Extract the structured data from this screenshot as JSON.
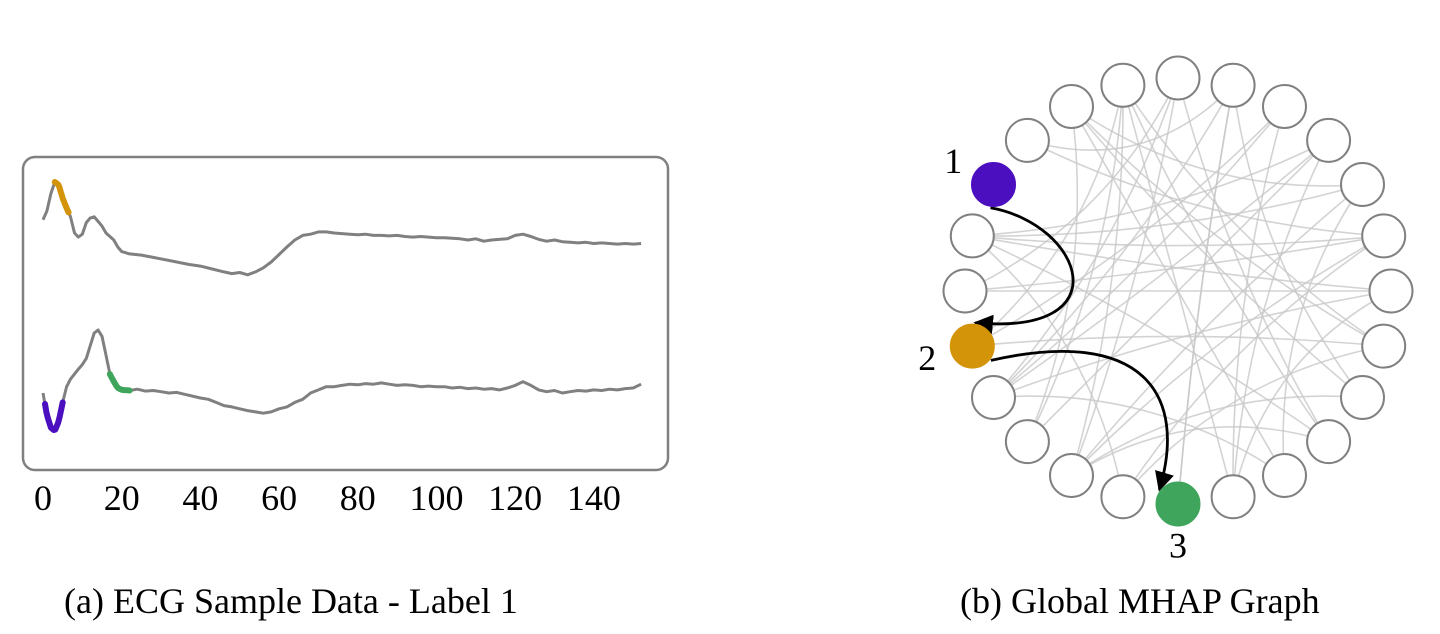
{
  "panels": {
    "a": {
      "caption": "(a) ECG Sample Data - Label 1"
    },
    "b": {
      "caption": "(b) Global MHAP Graph"
    }
  },
  "chart_data": [
    {
      "type": "line",
      "xlim": [
        0,
        153
      ],
      "x_ticks": [
        "0",
        "20",
        "40",
        "60",
        "80",
        "100",
        "120",
        "140"
      ],
      "x_tick_values": [
        0,
        20,
        40,
        60,
        80,
        100,
        120,
        140
      ],
      "grid": false,
      "line_color": "#808080",
      "series": [
        {
          "points": [
            [
              0,
              0.35
            ],
            [
              1,
              0.5
            ],
            [
              2,
              0.8
            ],
            [
              3,
              1.0
            ],
            [
              4,
              0.95
            ],
            [
              5,
              0.72
            ],
            [
              6,
              0.55
            ],
            [
              7,
              0.4
            ],
            [
              8,
              0.12
            ],
            [
              9,
              0.05
            ],
            [
              10,
              0.1
            ],
            [
              11,
              0.3
            ],
            [
              12,
              0.38
            ],
            [
              13,
              0.4
            ],
            [
              14,
              0.32
            ],
            [
              15,
              0.24
            ],
            [
              16,
              0.12
            ],
            [
              17,
              0.06
            ],
            [
              18,
              0.0
            ],
            [
              19,
              -0.12
            ],
            [
              20,
              -0.2
            ],
            [
              22,
              -0.24
            ],
            [
              25,
              -0.26
            ],
            [
              28,
              -0.3
            ],
            [
              31,
              -0.34
            ],
            [
              34,
              -0.38
            ],
            [
              37,
              -0.42
            ],
            [
              40,
              -0.45
            ],
            [
              43,
              -0.5
            ],
            [
              46,
              -0.55
            ],
            [
              48,
              -0.58
            ],
            [
              50,
              -0.56
            ],
            [
              52,
              -0.6
            ],
            [
              54,
              -0.55
            ],
            [
              56,
              -0.48
            ],
            [
              58,
              -0.38
            ],
            [
              60,
              -0.25
            ],
            [
              62,
              -0.12
            ],
            [
              64,
              0.0
            ],
            [
              66,
              0.08
            ],
            [
              68,
              0.1
            ],
            [
              70,
              0.14
            ],
            [
              72,
              0.14
            ],
            [
              74,
              0.12
            ],
            [
              76,
              0.11
            ],
            [
              78,
              0.1
            ],
            [
              80,
              0.09
            ],
            [
              82,
              0.1
            ],
            [
              84,
              0.08
            ],
            [
              86,
              0.08
            ],
            [
              88,
              0.07
            ],
            [
              90,
              0.08
            ],
            [
              92,
              0.06
            ],
            [
              94,
              0.05
            ],
            [
              96,
              0.06
            ],
            [
              98,
              0.05
            ],
            [
              100,
              0.04
            ],
            [
              102,
              0.04
            ],
            [
              104,
              0.03
            ],
            [
              106,
              0.02
            ],
            [
              108,
              0.0
            ],
            [
              110,
              0.02
            ],
            [
              112,
              -0.02
            ],
            [
              114,
              0.0
            ],
            [
              116,
              0.01
            ],
            [
              118,
              0.02
            ],
            [
              120,
              0.08
            ],
            [
              122,
              0.1
            ],
            [
              124,
              0.06
            ],
            [
              126,
              0.01
            ],
            [
              128,
              -0.02
            ],
            [
              130,
              0.0
            ],
            [
              132,
              -0.03
            ],
            [
              134,
              -0.04
            ],
            [
              136,
              -0.05
            ],
            [
              138,
              -0.04
            ],
            [
              140,
              -0.06
            ],
            [
              142,
              -0.05
            ],
            [
              144,
              -0.06
            ],
            [
              146,
              -0.07
            ],
            [
              148,
              -0.06
            ],
            [
              150,
              -0.07
            ],
            [
              152,
              -0.06
            ]
          ],
          "highlights": [
            {
              "from": 3,
              "to": 6.5,
              "color": "#d4940a"
            }
          ]
        },
        {
          "points": [
            [
              0,
              0.0
            ],
            [
              1,
              -0.35
            ],
            [
              2,
              -0.55
            ],
            [
              3,
              -0.6
            ],
            [
              4,
              -0.45
            ],
            [
              5,
              -0.15
            ],
            [
              6,
              0.1
            ],
            [
              7,
              0.22
            ],
            [
              8,
              0.3
            ],
            [
              9,
              0.38
            ],
            [
              10,
              0.45
            ],
            [
              11,
              0.55
            ],
            [
              12,
              0.75
            ],
            [
              13,
              0.95
            ],
            [
              14,
              1.0
            ],
            [
              15,
              0.9
            ],
            [
              16,
              0.6
            ],
            [
              17,
              0.3
            ],
            [
              18,
              0.18
            ],
            [
              19,
              0.08
            ],
            [
              20,
              0.05
            ],
            [
              22,
              0.04
            ],
            [
              24,
              0.06
            ],
            [
              26,
              0.03
            ],
            [
              28,
              0.04
            ],
            [
              30,
              0.02
            ],
            [
              32,
              0.0
            ],
            [
              34,
              0.01
            ],
            [
              36,
              -0.02
            ],
            [
              38,
              -0.05
            ],
            [
              40,
              -0.08
            ],
            [
              42,
              -0.1
            ],
            [
              44,
              -0.15
            ],
            [
              46,
              -0.2
            ],
            [
              48,
              -0.22
            ],
            [
              50,
              -0.25
            ],
            [
              52,
              -0.28
            ],
            [
              54,
              -0.3
            ],
            [
              56,
              -0.32
            ],
            [
              58,
              -0.3
            ],
            [
              60,
              -0.25
            ],
            [
              62,
              -0.22
            ],
            [
              64,
              -0.15
            ],
            [
              66,
              -0.1
            ],
            [
              68,
              0.0
            ],
            [
              70,
              0.05
            ],
            [
              72,
              0.1
            ],
            [
              74,
              0.1
            ],
            [
              76,
              0.12
            ],
            [
              78,
              0.14
            ],
            [
              80,
              0.13
            ],
            [
              82,
              0.15
            ],
            [
              84,
              0.14
            ],
            [
              86,
              0.16
            ],
            [
              88,
              0.14
            ],
            [
              90,
              0.12
            ],
            [
              92,
              0.13
            ],
            [
              94,
              0.12
            ],
            [
              96,
              0.1
            ],
            [
              98,
              0.11
            ],
            [
              100,
              0.1
            ],
            [
              102,
              0.1
            ],
            [
              104,
              0.08
            ],
            [
              106,
              0.09
            ],
            [
              108,
              0.07
            ],
            [
              110,
              0.08
            ],
            [
              112,
              0.06
            ],
            [
              114,
              0.07
            ],
            [
              116,
              0.05
            ],
            [
              118,
              0.08
            ],
            [
              120,
              0.12
            ],
            [
              122,
              0.18
            ],
            [
              124,
              0.12
            ],
            [
              126,
              0.05
            ],
            [
              128,
              0.02
            ],
            [
              130,
              0.04
            ],
            [
              132,
              0.0
            ],
            [
              134,
              0.02
            ],
            [
              136,
              0.04
            ],
            [
              138,
              0.03
            ],
            [
              140,
              0.05
            ],
            [
              142,
              0.04
            ],
            [
              144,
              0.06
            ],
            [
              146,
              0.05
            ],
            [
              148,
              0.07
            ],
            [
              150,
              0.08
            ],
            [
              152,
              0.14
            ]
          ],
          "highlights": [
            {
              "from": 0.5,
              "to": 5,
              "color": "#4b0fbf"
            },
            {
              "from": 17,
              "to": 22,
              "color": "#3fa55c"
            }
          ]
        }
      ]
    },
    {
      "type": "graph",
      "layout": "circular",
      "node_count": 24,
      "empty_node_stroke": "#808080",
      "highlighted_nodes": [
        {
          "label": "1",
          "ring_index": 20,
          "color": "#4b0fbf"
        },
        {
          "label": "2",
          "ring_index": 17,
          "color": "#d4940a"
        },
        {
          "label": "3",
          "ring_index": 12,
          "color": "#3fa55c"
        }
      ],
      "highlighted_edges": [
        [
          "1",
          "2"
        ],
        [
          "2",
          "3"
        ]
      ],
      "highlighted_edge_color": "#000000",
      "background_edges": [
        [
          22,
          15
        ],
        [
          22,
          10
        ],
        [
          22,
          8
        ],
        [
          23,
          14
        ],
        [
          23,
          9
        ],
        [
          23,
          17
        ],
        [
          0,
          14
        ],
        [
          0,
          9
        ],
        [
          0,
          16
        ],
        [
          1,
          12
        ],
        [
          1,
          16
        ],
        [
          1,
          8
        ],
        [
          2,
          11
        ],
        [
          2,
          16
        ],
        [
          2,
          17
        ],
        [
          3,
          15
        ],
        [
          3,
          11
        ],
        [
          3,
          19
        ],
        [
          4,
          19
        ],
        [
          4,
          10
        ],
        [
          4,
          14
        ],
        [
          5,
          18
        ],
        [
          5,
          13
        ],
        [
          5,
          19
        ],
        [
          6,
          16
        ],
        [
          6,
          19
        ],
        [
          6,
          11
        ],
        [
          7,
          17
        ],
        [
          7,
          13
        ],
        [
          7,
          22
        ],
        [
          8,
          14
        ],
        [
          9,
          14
        ],
        [
          10,
          16
        ],
        [
          11,
          23
        ],
        [
          12,
          1
        ],
        [
          13,
          19
        ],
        [
          15,
          23
        ],
        [
          18,
          0
        ],
        [
          18,
          6
        ],
        [
          21,
          1
        ],
        [
          21,
          5
        ],
        [
          19,
          9
        ],
        [
          16,
          3
        ],
        [
          14,
          5
        ],
        [
          22,
          4
        ],
        [
          23,
          7
        ]
      ],
      "background_edge_color": "#c8c8c8"
    }
  ]
}
